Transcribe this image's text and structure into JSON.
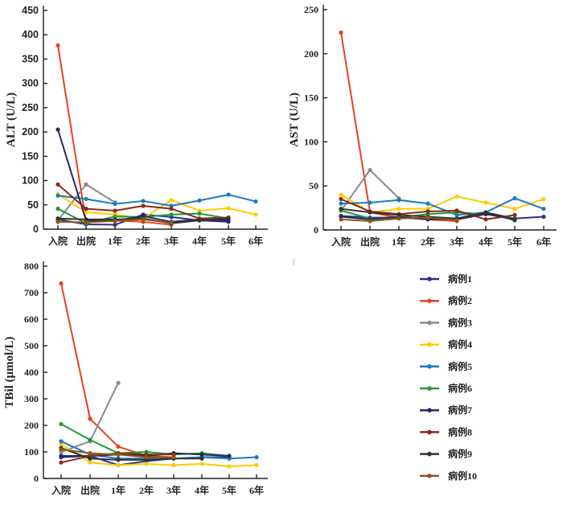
{
  "chart_data": [
    {
      "id": "alt",
      "type": "line",
      "title": "",
      "xlabel": "",
      "ylabel": "ALT (U/L)",
      "ylim": [
        0,
        450
      ],
      "yticks": [
        0,
        50,
        100,
        150,
        200,
        250,
        300,
        350,
        400,
        450
      ],
      "categories": [
        "入院",
        "出院",
        "1年",
        "2年",
        "3年",
        "4年",
        "5年",
        "6年"
      ],
      "grid": false,
      "series": [
        {
          "name": "病例1",
          "values": [
            20,
            10,
            9,
            30,
            25,
            18,
            15,
            null
          ]
        },
        {
          "name": "病例2",
          "values": [
            378,
            15,
            18,
            15,
            9,
            null,
            null,
            null
          ]
        },
        {
          "name": "病例3",
          "values": [
            18,
            92,
            55,
            null,
            null,
            null,
            null,
            null
          ]
        },
        {
          "name": "病例4",
          "values": [
            72,
            35,
            30,
            22,
            60,
            38,
            43,
            30
          ]
        },
        {
          "name": "病例5",
          "values": [
            69,
            62,
            52,
            58,
            48,
            59,
            71,
            57
          ]
        },
        {
          "name": "病例6",
          "values": [
            42,
            12,
            26,
            25,
            30,
            32,
            22,
            null
          ]
        },
        {
          "name": "病例7",
          "values": [
            205,
            18,
            17,
            27,
            15,
            20,
            18,
            null
          ]
        },
        {
          "name": "病例8",
          "values": [
            92,
            42,
            38,
            48,
            42,
            22,
            24,
            null
          ]
        },
        {
          "name": "病例9",
          "values": [
            22,
            20,
            20,
            22,
            12,
            18,
            22,
            null
          ]
        },
        {
          "name": "病例10",
          "values": [
            15,
            14,
            17,
            20,
            13,
            null,
            null,
            null
          ]
        }
      ]
    },
    {
      "id": "ast",
      "type": "line",
      "title": "",
      "xlabel": "",
      "ylabel": "AST (U/L)",
      "ylim": [
        0,
        250
      ],
      "yticks": [
        0,
        50,
        100,
        150,
        200,
        250
      ],
      "categories": [
        "入院",
        "出院",
        "1年",
        "2年",
        "3年",
        "4年",
        "5年",
        "6年"
      ],
      "grid": false,
      "series": [
        {
          "name": "病例1",
          "values": [
            16,
            14,
            14,
            13,
            13,
            20,
            13,
            15
          ]
        },
        {
          "name": "病例2",
          "values": [
            224,
            20,
            14,
            12,
            10,
            null,
            null,
            null
          ]
        },
        {
          "name": "病例3",
          "values": [
            22,
            68,
            36,
            null,
            null,
            null,
            null,
            null
          ]
        },
        {
          "name": "病例4",
          "values": [
            40,
            20,
            24,
            24,
            38,
            31,
            24,
            35
          ]
        },
        {
          "name": "病例5",
          "values": [
            30,
            31,
            34,
            30,
            17,
            20,
            36,
            24
          ]
        },
        {
          "name": "病例6",
          "values": [
            22,
            13,
            14,
            18,
            20,
            18,
            13,
            null
          ]
        },
        {
          "name": "病例7",
          "values": [
            15,
            12,
            15,
            12,
            12,
            18,
            12,
            null
          ]
        },
        {
          "name": "病例8",
          "values": [
            35,
            21,
            18,
            21,
            22,
            12,
            17,
            null
          ]
        },
        {
          "name": "病例9",
          "values": [
            24,
            20,
            17,
            15,
            13,
            20,
            11,
            null
          ]
        },
        {
          "name": "病例10",
          "values": [
            12,
            10,
            13,
            14,
            11,
            null,
            null,
            null
          ]
        }
      ]
    },
    {
      "id": "tbil",
      "type": "line",
      "title": "",
      "xlabel": "",
      "ylabel": "TBil (μmol/L)",
      "ylim": [
        0,
        800
      ],
      "yticks": [
        0,
        100,
        200,
        300,
        400,
        500,
        600,
        700,
        800
      ],
      "categories": [
        "入院",
        "出院",
        "1年",
        "2年",
        "3年",
        "4年",
        "5年",
        "6年"
      ],
      "grid": false,
      "series": [
        {
          "name": "病例1",
          "values": [
            80,
            85,
            50,
            65,
            75,
            80,
            80,
            null
          ]
        },
        {
          "name": "病例2",
          "values": [
            735,
            225,
            120,
            85,
            80,
            null,
            null,
            null
          ]
        },
        {
          "name": "病例3",
          "values": [
            100,
            140,
            360,
            null,
            null,
            null,
            null,
            null
          ]
        },
        {
          "name": "病例4",
          "values": [
            130,
            60,
            50,
            55,
            50,
            55,
            45,
            50
          ]
        },
        {
          "name": "病例5",
          "values": [
            140,
            90,
            75,
            75,
            75,
            80,
            75,
            80
          ]
        },
        {
          "name": "病例6",
          "values": [
            205,
            145,
            95,
            100,
            90,
            95,
            85,
            null
          ]
        },
        {
          "name": "病例7",
          "values": [
            85,
            85,
            90,
            85,
            95,
            90,
            85,
            null
          ]
        },
        {
          "name": "病例8",
          "values": [
            60,
            85,
            95,
            90,
            90,
            null,
            null,
            null
          ]
        },
        {
          "name": "病例9",
          "values": [
            115,
            75,
            70,
            70,
            75,
            75,
            null,
            null
          ]
        },
        {
          "name": "病例10",
          "values": [
            110,
            95,
            90,
            80,
            80,
            null,
            null,
            null
          ]
        }
      ]
    }
  ],
  "legend": {
    "placement": "right",
    "items": [
      {
        "name": "病例1",
        "color": "#2e2f8c"
      },
      {
        "name": "病例2",
        "color": "#e8421b"
      },
      {
        "name": "病例3",
        "color": "#8a8a8a"
      },
      {
        "name": "病例4",
        "color": "#ffcc00"
      },
      {
        "name": "病例5",
        "color": "#1a7ac0"
      },
      {
        "name": "病例6",
        "color": "#1f9a3a"
      },
      {
        "name": "病例7",
        "color": "#2b2560"
      },
      {
        "name": "病例8",
        "color": "#8b2a14"
      },
      {
        "name": "病例9",
        "color": "#333333"
      },
      {
        "name": "病例10",
        "color": "#8a5a1a"
      }
    ]
  }
}
